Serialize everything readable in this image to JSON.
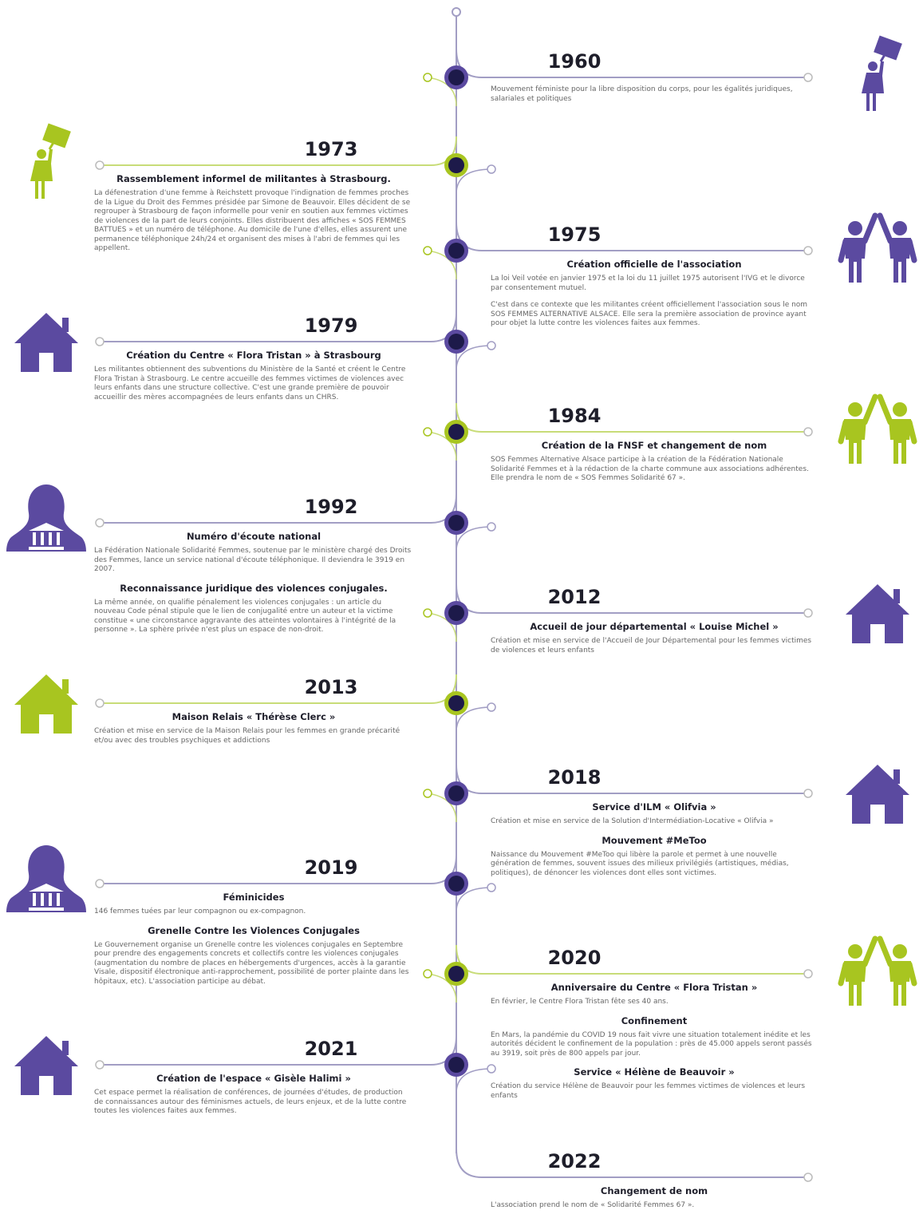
{
  "events": [
    {
      "year": "1960",
      "items": [
        {
          "text": "Mouvement féministe pour la libre disposition du corps, pour les égalités juridiques, salariales et politiques"
        }
      ]
    },
    {
      "year": "1973",
      "items": [
        {
          "heading": "Rassemblement informel de militantes à Strasbourg.",
          "text": "La défenestration d'une femme à Reichstett provoque l'indignation de femmes proches de la Ligue du Droit des Femmes présidée par Simone de Beauvoir. Elles décident de se regrouper à Strasbourg de façon informelle pour venir en soutien aux femmes victimes de violences de la part de leurs conjoints. Elles distribuent des affiches « SOS FEMMES BATTUES » et un numéro de téléphone. Au domicile de l'une d'elles, elles assurent une permanence téléphonique 24h/24 et organisent des mises à l'abri de femmes qui les appellent."
        }
      ]
    },
    {
      "year": "1975",
      "items": [
        {
          "heading": "Création officielle de l'association",
          "text": "La loi Veil votée en janvier 1975 et la loi du 11 juillet 1975 autorisent l'IVG et le divorce par consentement mutuel."
        },
        {
          "text": "C'est dans ce contexte que les militantes créent officiellement l'association sous le nom SOS FEMMES ALTERNATIVE ALSACE. Elle sera la première association de province ayant pour objet la lutte contre les violences faites aux femmes."
        }
      ]
    },
    {
      "year": "1979",
      "items": [
        {
          "heading": "Création du Centre « Flora Tristan » à Strasbourg",
          "text": "Les militantes obtiennent des subventions du Ministère de la Santé et créent le Centre Flora Tristan à Strasbourg. Le centre accueille des femmes victimes de violences avec leurs enfants dans une structure collective. C'est une grande première de pouvoir accueillir des mères accompagnées de leurs enfants dans un CHRS."
        }
      ]
    },
    {
      "year": "1984",
      "items": [
        {
          "heading": "Création de la FNSF et changement de nom",
          "text": "SOS Femmes Alternative Alsace participe à la création de la Fédération Nationale Solidarité Femmes et à la rédaction de la charte commune aux associations adhérentes. Elle prendra le nom de « SOS Femmes Solidarité 67 »."
        }
      ]
    },
    {
      "year": "1992",
      "items": [
        {
          "heading": "Numéro d'écoute national",
          "text": "La Fédération Nationale Solidarité Femmes, soutenue par le ministère chargé des Droits des Femmes, lance un service national d'écoute téléphonique. Il deviendra le 3919 en 2007."
        },
        {
          "heading": "Reconnaissance juridique des violences conjugales.",
          "text": "La même année, on qualifie pénalement les violences conjugales : un article du nouveau Code pénal stipule que le lien de conjugalité entre un auteur et la victime constitue « une circonstance aggravante des atteintes volontaires à l'intégrité de la personne ». La sphère privée n'est plus un espace de non-droit."
        }
      ]
    },
    {
      "year": "2012",
      "items": [
        {
          "heading": "Accueil de jour départemental « Louise Michel »",
          "text": "Création et mise en service de l'Accueil de Jour Départemental pour les femmes victimes de violences et leurs enfants"
        }
      ]
    },
    {
      "year": "2013",
      "items": [
        {
          "heading": "Maison Relais « Thérèse Clerc »",
          "text": "Création et mise en service de la Maison Relais pour les femmes en grande précarité et/ou avec des troubles psychiques et addictions"
        }
      ]
    },
    {
      "year": "2018",
      "items": [
        {
          "heading": "Service d'ILM « Olifvia »",
          "text": "Création et mise en service de la Solution d'Intermédiation-Locative « Olifvia »"
        },
        {
          "heading": "Mouvement #MeToo",
          "text": "Naissance du Mouvement #MeToo qui libère la parole et permet à une nouvelle génération de femmes, souvent issues des milieux privilégiés (artistiques, médias, politiques), de dénoncer les violences dont elles sont victimes."
        }
      ]
    },
    {
      "year": "2019",
      "items": [
        {
          "heading": "Féminicides",
          "text": "146 femmes tuées par leur compagnon ou ex-compagnon."
        },
        {
          "heading": "Grenelle Contre les Violences Conjugales",
          "text": "Le Gouvernement organise un Grenelle contre les violences conjugales en Septembre pour prendre des engagements concrets et collectifs contre les violences conjugales (augmentation du nombre de places en hébergements d'urgences, accès à la garantie Visale, dispositif électronique anti-rapprochement, possibilité de porter plainte dans les hôpitaux, etc). L'association participe au débat."
        }
      ]
    },
    {
      "year": "2020",
      "items": [
        {
          "heading": "Anniversaire du Centre « Flora Tristan »",
          "text": "En février, le Centre Flora Tristan fête ses 40 ans."
        },
        {
          "heading": "Confinement",
          "text": "En Mars, la pandémie du COVID 19 nous fait vivre une situation totalement inédite et les autorités décident le confinement de la population : près de 45.000 appels seront passés au 3919, soit près de 800 appels par jour."
        },
        {
          "heading": "Service « Hélène de Beauvoir »",
          "text": "Création du service Hélène de Beauvoir pour les femmes victimes de violences et leurs enfants"
        }
      ]
    },
    {
      "year": "2021",
      "items": [
        {
          "heading": "Création de l'espace « Gisèle Halimi »",
          "text": "Cet espace permet la réalisation de conférences, de journées d'études, de production de connaissances autour des féminismes actuels, de leurs enjeux, et de la lutte contre toutes les violences faites aux femmes."
        }
      ]
    },
    {
      "year": "2022",
      "items": [
        {
          "heading": "Changement de nom",
          "text": "L'association prend le nom de « Solidarité Femmes 67 »."
        }
      ]
    }
  ]
}
